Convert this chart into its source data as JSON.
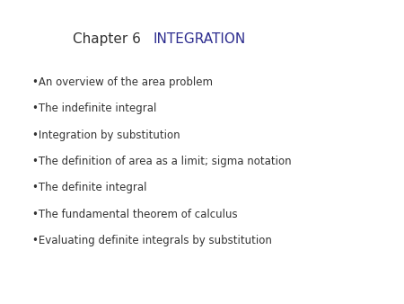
{
  "background_color": "#ffffff",
  "chapter_label": "Chapter 6",
  "chapter_label_color": "#333333",
  "chapter_label_fontsize": 11,
  "title": "INTEGRATION",
  "title_color": "#2d2d8f",
  "title_fontsize": 11,
  "bullet_items": [
    "•An overview of the area problem",
    "•The indefinite integral",
    "•Integration by substitution",
    "•The definition of area as a limit; sigma notation",
    "•The definite integral",
    "•The fundamental theorem of calculus",
    "•Evaluating definite integrals by substitution"
  ],
  "bullet_color": "#333333",
  "bullet_fontsize": 8.5
}
